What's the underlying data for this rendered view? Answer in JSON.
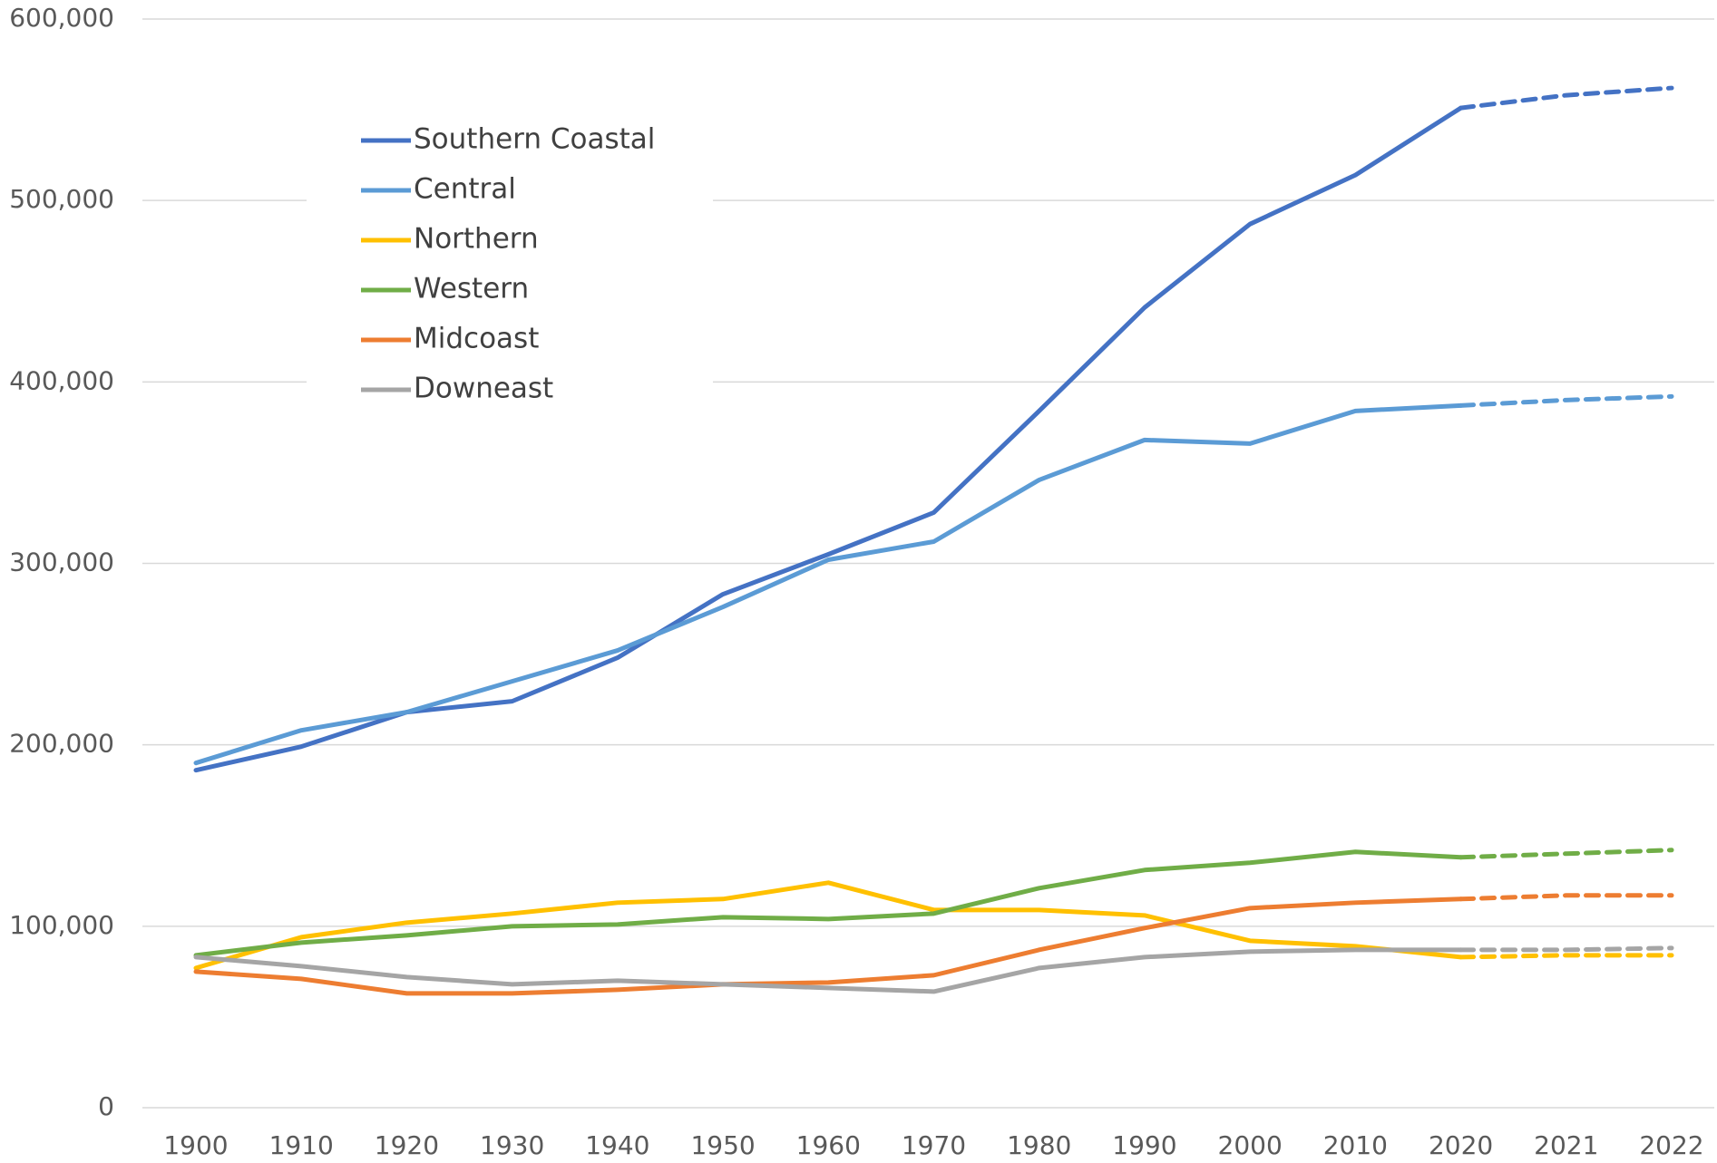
{
  "chart_data": {
    "type": "line",
    "categories": [
      "1900",
      "1910",
      "1920",
      "1930",
      "1940",
      "1950",
      "1960",
      "1970",
      "1980",
      "1990",
      "2000",
      "2010",
      "2020",
      "2021",
      "2022"
    ],
    "dashed_from_category": 12,
    "ylim": [
      0,
      600000
    ],
    "yticks": [
      0,
      {
        "value": 100000,
        "label": "100,000"
      },
      {
        "value": 200000,
        "label": "200,000"
      },
      {
        "value": 300000,
        "label": "300,000"
      },
      {
        "value": 400000,
        "label": "400,000"
      },
      {
        "value": 500000,
        "label": "500,000"
      },
      {
        "value": 600000,
        "label": "600,000"
      }
    ],
    "grid": true,
    "legend": "upper left",
    "series": [
      {
        "name": "Southern Coastal",
        "color": "#4472c4",
        "values": [
          186000,
          199000,
          218000,
          224000,
          248000,
          283000,
          305000,
          328000,
          384000,
          441000,
          487000,
          514000,
          551000,
          558000,
          562000
        ]
      },
      {
        "name": "Central",
        "color": "#5b9bd5",
        "values": [
          190000,
          208000,
          218000,
          235000,
          252000,
          276000,
          302000,
          312000,
          346000,
          368000,
          366000,
          384000,
          387000,
          390000,
          392000
        ]
      },
      {
        "name": "Northern",
        "color": "#ffc000",
        "values": [
          77000,
          94000,
          102000,
          107000,
          113000,
          115000,
          124000,
          109000,
          109000,
          106000,
          92000,
          89000,
          83000,
          84000,
          84000
        ]
      },
      {
        "name": "Western",
        "color": "#70ad47",
        "values": [
          84000,
          91000,
          95000,
          100000,
          101000,
          105000,
          104000,
          107000,
          121000,
          131000,
          135000,
          141000,
          138000,
          140000,
          142000
        ]
      },
      {
        "name": "Midcoast",
        "color": "#ed7d31",
        "values": [
          75000,
          71000,
          63000,
          63000,
          65000,
          68000,
          69000,
          73000,
          87000,
          99000,
          110000,
          113000,
          115000,
          117000,
          117000
        ]
      },
      {
        "name": "Downeast",
        "color": "#a5a5a5",
        "values": [
          83000,
          78000,
          72000,
          68000,
          70000,
          68000,
          66000,
          64000,
          77000,
          83000,
          86000,
          87000,
          87000,
          87000,
          88000
        ]
      }
    ]
  }
}
